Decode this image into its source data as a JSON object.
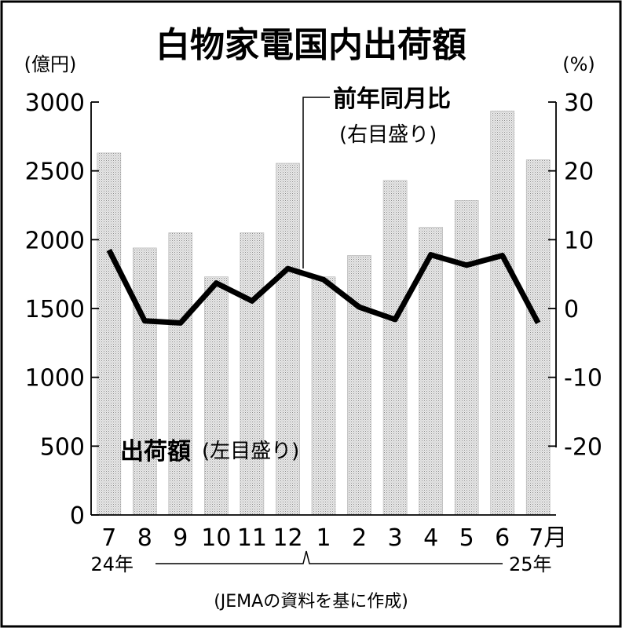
{
  "chart_data": {
    "type": "bar",
    "title": "白物家電国内出荷額",
    "categories": [
      "7",
      "8",
      "9",
      "10",
      "11",
      "12",
      "1",
      "2",
      "3",
      "4",
      "5",
      "6",
      "7月"
    ],
    "year_labels": {
      "start": "24年",
      "end": "25年"
    },
    "left_axis": {
      "unit": "(億円)",
      "ylim": [
        0,
        3000
      ],
      "ticks": [
        "0",
        "500",
        "1000",
        "1500",
        "2000",
        "2500",
        "3000"
      ]
    },
    "right_axis": {
      "unit": "(%)",
      "ylim": [
        -30,
        30
      ],
      "ticks": [
        "30",
        "20",
        "10",
        "0",
        "-10",
        "-20"
      ]
    },
    "series": [
      {
        "name": "出荷額",
        "axis_note": "(左目盛り)",
        "type": "bar",
        "values": [
          2630,
          1940,
          2050,
          1730,
          2050,
          2555,
          1730,
          1885,
          2430,
          2090,
          2285,
          2935,
          2580
        ]
      },
      {
        "name": "前年同月比",
        "axis_note": "(右目盛り)",
        "type": "line",
        "values": [
          8.5,
          -1.8,
          -2.1,
          3.7,
          1.1,
          5.8,
          4.2,
          0.2,
          -1.6,
          7.8,
          6.3,
          7.7,
          -2.1
        ]
      }
    ],
    "source": "(JEMAの資料を基に作成)"
  }
}
